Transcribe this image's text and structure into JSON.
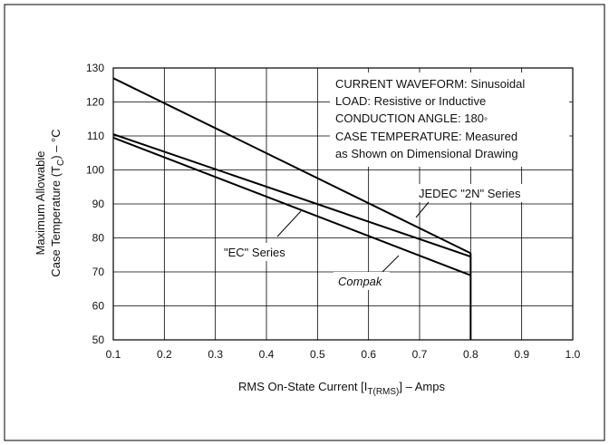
{
  "chart_data": {
    "type": "line",
    "xlabel_main": "RMS On-State Current [I",
    "xlabel_sub": "T(RMS)",
    "xlabel_tail": "] – Amps",
    "ylabel_line1": "Maximum Allowable",
    "ylabel_line2_main": "Case Temperature (T",
    "ylabel_line2_sub": "C",
    "ylabel_line2_tail": ") – °C",
    "xlim": [
      0.1,
      1.0
    ],
    "ylim": [
      50,
      130
    ],
    "x_ticks": [
      "0.1",
      "0.2",
      "0.3",
      "0.4",
      "0.5",
      "0.6",
      "0.7",
      "0.8",
      "0.9",
      "1.0"
    ],
    "y_ticks": [
      "50",
      "60",
      "70",
      "80",
      "90",
      "100",
      "110",
      "120",
      "130"
    ],
    "grid": true,
    "series": [
      {
        "name": "JEDEC \"2N\" Series",
        "x": [
          0.1,
          0.8
        ],
        "y": [
          127,
          75.5
        ]
      },
      {
        "name": "\"EC\" Series",
        "x": [
          0.1,
          0.8
        ],
        "y": [
          110.5,
          74.5
        ]
      },
      {
        "name": "Compak",
        "x": [
          0.1,
          0.8
        ],
        "y": [
          109.5,
          69
        ]
      }
    ],
    "cutoff_x": 0.8,
    "conditions": [
      "CURRENT WAVEFORM: Sinusoidal",
      "LOAD: Resistive or Inductive",
      "CONDUCTION ANGLE: 180",
      "CASE TEMPERATURE: Measured",
      "as Shown on Dimensional Drawing"
    ],
    "degree_mark": "°",
    "labels": {
      "jedec": "JEDEC \"2N\" Series",
      "ec": "\"EC\" Series",
      "compak": "Compak"
    }
  }
}
